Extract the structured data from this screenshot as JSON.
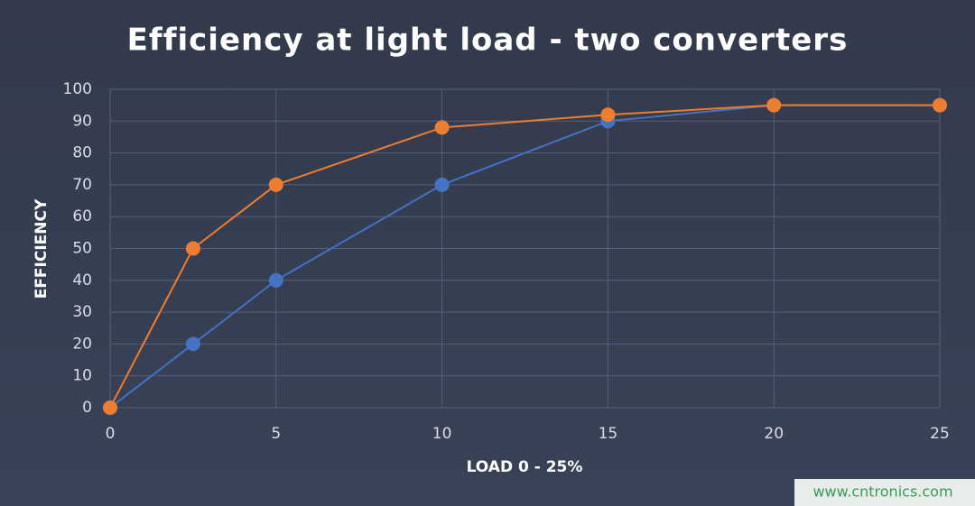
{
  "chart_data": {
    "type": "line",
    "title": "Efficiency at light load - two converters",
    "x_label": "LOAD 0 - 25%",
    "y_label": "EFFICIENCY",
    "x": [
      0,
      2.5,
      5,
      10,
      15,
      20,
      25
    ],
    "series": [
      {
        "color": "#4472c4",
        "values": [
          0,
          20,
          40,
          70,
          90,
          95,
          95
        ]
      },
      {
        "color": "#ed7d31",
        "values": [
          0,
          50,
          70,
          88,
          92,
          95,
          95
        ]
      }
    ],
    "xlim": [
      0,
      25
    ],
    "xticks": [
      0,
      5,
      10,
      15,
      20,
      25
    ],
    "ylim": [
      0,
      100
    ],
    "yticks": [
      0,
      10,
      20,
      30,
      40,
      50,
      60,
      70,
      80,
      90,
      100
    ],
    "grid": true,
    "watermark": "www.cntronics.com"
  }
}
